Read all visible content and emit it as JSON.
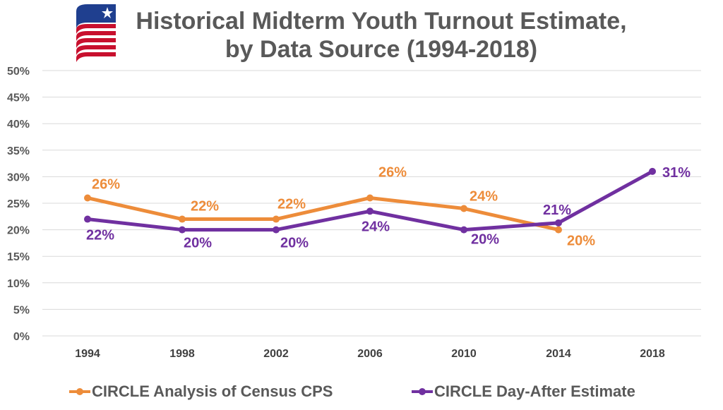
{
  "title_line1": "Historical Midterm Youth Turnout Estimate,",
  "title_line2": "by Data Source (1994-2018)",
  "colors": {
    "orange": "#ED8C3A",
    "purple": "#7030A0",
    "gridline": "#D9D9D9",
    "text_gray": "#595959",
    "logo_blue": "#1F3F8F",
    "logo_red": "#C8102E"
  },
  "chart_data": {
    "type": "line",
    "title": "Historical Midterm Youth Turnout Estimate, by Data Source (1994-2018)",
    "categories": [
      "1994",
      "1998",
      "2002",
      "2006",
      "2010",
      "2014",
      "2018"
    ],
    "ylim": [
      0,
      50
    ],
    "yticks": [
      0,
      5,
      10,
      15,
      20,
      25,
      30,
      35,
      40,
      45,
      50
    ],
    "ytick_labels": [
      "0%",
      "5%",
      "10%",
      "15%",
      "20%",
      "25%",
      "30%",
      "35%",
      "40%",
      "45%",
      "50%"
    ],
    "y_unit": "%",
    "grid": "horizontal",
    "legend_position": "bottom",
    "series": [
      {
        "name": "CIRCLE Analysis of Census CPS",
        "color": "#ED8C3A",
        "values": [
          26,
          22,
          22,
          26,
          24,
          20,
          null
        ],
        "labels": [
          "26%",
          "22%",
          "22%",
          "26%",
          "24%",
          "20%",
          ""
        ]
      },
      {
        "name": "CIRCLE Day-After Estimate",
        "color": "#7030A0",
        "values": [
          22,
          20,
          20,
          23.5,
          20,
          21.3,
          31
        ],
        "labels": [
          "22%",
          "20%",
          "20%",
          "24%",
          "20%",
          "21%",
          "31%"
        ]
      }
    ]
  }
}
